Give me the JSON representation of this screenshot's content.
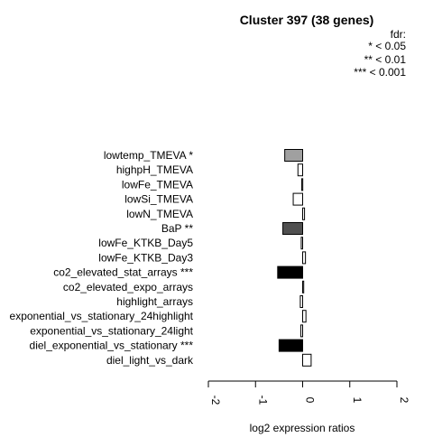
{
  "chart_data": {
    "type": "bar",
    "orientation": "horizontal",
    "title": "Cluster 397 (38 genes)",
    "xlabel": "log2 expression ratios",
    "ylabel": "",
    "xlim": [
      -2,
      2
    ],
    "xticks": [
      "-2",
      "-1",
      "0",
      "1",
      "2"
    ],
    "legend": {
      "title": "fdr:",
      "entries": [
        "* < 0.05",
        "** < 0.01",
        "*** < 0.001"
      ],
      "placement": "top-right"
    },
    "categories": [
      "lowtemp_TMEVA *",
      "highpH_TMEVA",
      "lowFe_TMEVA",
      "lowSi_TMEVA",
      "lowN_TMEVA",
      "BaP **",
      "lowFe_KTKB_Day5",
      "lowFe_KTKB_Day3",
      "co2_elevated_stat_arrays ***",
      "co2_elevated_expo_arrays",
      "highlight_arrays",
      "exponential_vs_stationary_24highlight",
      "exponential_vs_stationary_24light",
      "diel_exponential_vs_stationary ***",
      "diel_light_vs_dark"
    ],
    "values": [
      -0.38,
      -0.1,
      -0.02,
      -0.2,
      0.04,
      -0.42,
      -0.03,
      0.06,
      -0.53,
      0.01,
      -0.05,
      0.07,
      -0.04,
      -0.5,
      0.18
    ],
    "bar_colors": [
      "#a0a0a0",
      "#ffffff",
      "#ffffff",
      "#ffffff",
      "#ffffff",
      "#505050",
      "#ffffff",
      "#ffffff",
      "#000000",
      "#ffffff",
      "#ffffff",
      "#ffffff",
      "#ffffff",
      "#000000",
      "#ffffff"
    ],
    "grid": false
  }
}
